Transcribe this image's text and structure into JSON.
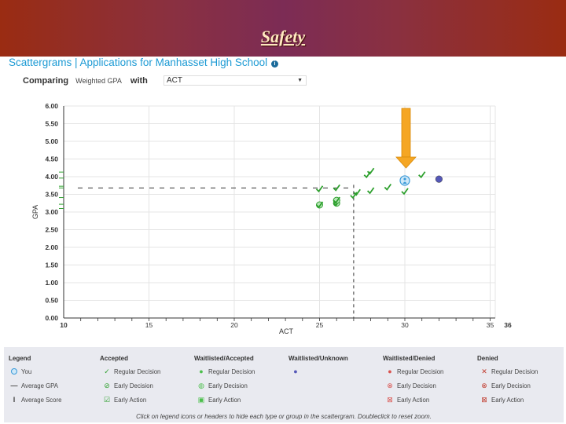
{
  "banner": {
    "title": "Safety"
  },
  "header": {
    "title": "Scattergrams | Applications for Manhasset High School",
    "info_icon": "info-icon"
  },
  "compare": {
    "label": "Comparing",
    "y_field": "Weighted GPA",
    "with_label": "with",
    "x_field": "ACT"
  },
  "chart_data": {
    "type": "scatter",
    "xlabel": "ACT",
    "ylabel": "GPA",
    "xlim": [
      10,
      36
    ],
    "ylim": [
      0,
      6
    ],
    "x_ticks": [
      "10",
      "15",
      "20",
      "25",
      "30",
      "35",
      "36"
    ],
    "y_ticks": [
      "0.00",
      "0.50",
      "1.00",
      "1.50",
      "2.00",
      "2.50",
      "3.00",
      "3.50",
      "4.00",
      "4.50",
      "5.00",
      "5.50",
      "6.00"
    ],
    "grid": true,
    "average_gpa": 3.68,
    "average_score": 27,
    "you": {
      "x": 30,
      "y": 3.89
    },
    "series": [
      {
        "name": "Accepted Regular Decision",
        "color": "#2ea02e",
        "points": [
          [
            25,
            3.65
          ],
          [
            26,
            3.68
          ],
          [
            27,
            3.47
          ],
          [
            27.2,
            3.55
          ],
          [
            27.8,
            4.05
          ],
          [
            28,
            4.15
          ],
          [
            28,
            3.6
          ],
          [
            29,
            3.7
          ],
          [
            30,
            3.58
          ],
          [
            31,
            4.05
          ]
        ]
      },
      {
        "name": "Accepted Early Decision",
        "color": "#2ea02e",
        "points": [
          [
            25,
            3.2
          ],
          [
            26,
            3.25
          ],
          [
            26,
            3.33
          ]
        ]
      },
      {
        "name": "Waitlisted/Unknown",
        "color": "#5558b8",
        "points": [
          [
            32,
            3.93
          ]
        ]
      }
    ]
  },
  "legend": {
    "headers": [
      "Legend",
      "Accepted",
      "Waitlisted/Accepted",
      "Waitlisted/Unknown",
      "Waitlisted/Denied",
      "Denied"
    ],
    "col0": [
      "You",
      "Average GPA",
      "Average Score"
    ],
    "col_items": [
      "Regular Decision",
      "Early Decision",
      "Early Action"
    ],
    "note": "Click on legend icons or headers to hide each type or group in the scattergram. Doubleclick to reset zoom.",
    "colors": {
      "accepted": "#2ea02e",
      "waitlisted_accepted": "#4cbf4c",
      "unknown": "#5558b8",
      "denied_w": "#d9534f",
      "denied": "#c0392b",
      "you": "#3a9ad9"
    }
  }
}
